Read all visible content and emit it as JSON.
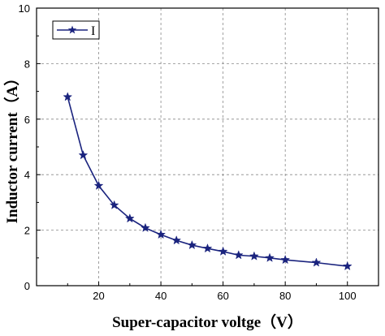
{
  "chart_data": {
    "type": "line",
    "xlabel": "Super-capacitor voltge（V）",
    "ylabel": "Inductor current（A）",
    "xlim": [
      0,
      110
    ],
    "ylim": [
      0,
      10
    ],
    "xticks": [
      20,
      40,
      60,
      80,
      100
    ],
    "yticks": [
      0,
      2,
      4,
      6,
      8,
      10
    ],
    "grid": true,
    "legend_position": "top-left",
    "series": [
      {
        "name": "I",
        "color": "#1a237e",
        "marker": "star",
        "x": [
          10,
          15,
          20,
          25,
          30,
          35,
          40,
          45,
          50,
          55,
          60,
          65,
          70,
          75,
          80,
          90,
          100
        ],
        "y": [
          6.8,
          4.7,
          3.6,
          2.9,
          2.42,
          2.08,
          1.84,
          1.63,
          1.46,
          1.34,
          1.23,
          1.1,
          1.06,
          1.0,
          0.93,
          0.83,
          0.7
        ]
      }
    ]
  }
}
